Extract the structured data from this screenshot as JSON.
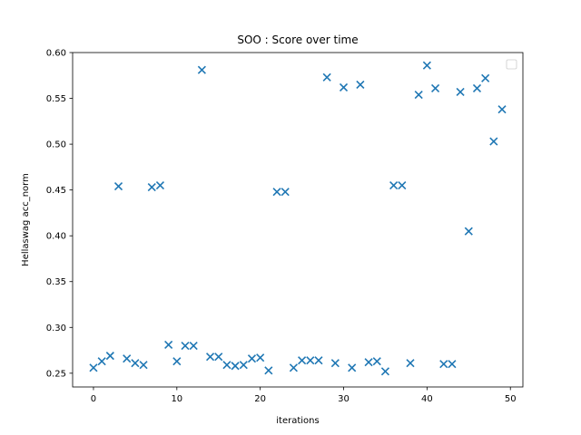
{
  "chart_data": {
    "type": "scatter",
    "title": "SOO : Score over time",
    "xlabel": "iterations",
    "ylabel": "Hellaswag acc_norm",
    "xlim": [
      -2.5,
      51.5
    ],
    "ylim": [
      0.235,
      0.6
    ],
    "xticks": [
      0,
      10,
      20,
      30,
      40,
      50
    ],
    "yticks": [
      0.25,
      0.3,
      0.35,
      0.4,
      0.45,
      0.5,
      0.55,
      0.6
    ],
    "ytick_labels": [
      "0.25",
      "0.30",
      "0.35",
      "0.40",
      "0.45",
      "0.50",
      "0.55",
      "0.60"
    ],
    "grid": false,
    "legend": "top-right (empty)",
    "marker": "x",
    "color": "#1f77b4",
    "x": [
      0,
      1,
      2,
      3,
      4,
      5,
      6,
      7,
      8,
      9,
      10,
      11,
      12,
      13,
      14,
      15,
      16,
      17,
      18,
      19,
      20,
      21,
      22,
      23,
      24,
      25,
      26,
      27,
      28,
      29,
      30,
      31,
      32,
      33,
      34,
      35,
      36,
      37,
      38,
      39,
      40,
      41,
      42,
      43,
      44,
      45,
      46,
      47,
      48,
      49
    ],
    "y": [
      0.256,
      0.263,
      0.269,
      0.454,
      0.266,
      0.261,
      0.259,
      0.453,
      0.455,
      0.281,
      0.263,
      0.28,
      0.28,
      0.581,
      0.268,
      0.268,
      0.259,
      0.258,
      0.259,
      0.266,
      0.267,
      0.253,
      0.448,
      0.448,
      0.256,
      0.264,
      0.264,
      0.264,
      0.573,
      0.261,
      0.562,
      0.256,
      0.565,
      0.262,
      0.263,
      0.252,
      0.455,
      0.455,
      0.261,
      0.554,
      0.586,
      0.561,
      0.26,
      0.26,
      0.557,
      0.405,
      0.561,
      0.572,
      0.503,
      0.538
    ]
  }
}
